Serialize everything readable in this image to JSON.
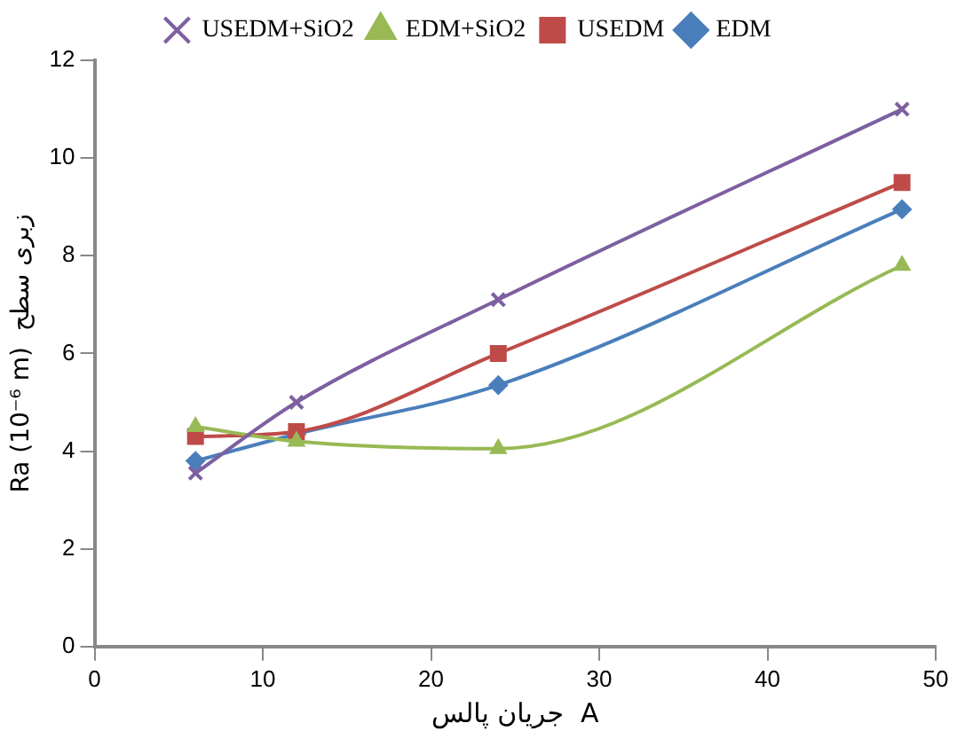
{
  "chart_data": {
    "type": "line",
    "xlabel": "جریان پالس  A",
    "ylabel": "Ra (10⁻⁶ m)  زبری سطح",
    "x": [
      6,
      12,
      24,
      48
    ],
    "series": [
      {
        "name": "EDM",
        "color": "#4a7ebb",
        "marker": "diamond",
        "values": [
          3.8,
          4.35,
          5.35,
          8.95
        ]
      },
      {
        "name": "USEDM",
        "color": "#be4b48",
        "marker": "square",
        "values": [
          4.3,
          4.4,
          6.0,
          9.5
        ]
      },
      {
        "name": "EDM+SiO2",
        "color": "#98b954",
        "marker": "triangle",
        "values": [
          4.5,
          4.2,
          4.05,
          7.8
        ]
      },
      {
        "name": "USEDM+SiO2",
        "color": "#7d60a0",
        "marker": "cross",
        "values": [
          3.55,
          5.0,
          7.1,
          11.0
        ]
      }
    ],
    "xlim": [
      0,
      50
    ],
    "xticks": [
      0,
      10,
      20,
      30,
      40,
      50
    ],
    "ylim": [
      0,
      12
    ],
    "yticks": [
      0,
      2,
      4,
      6,
      8,
      10,
      12
    ],
    "grid": false,
    "legend": "top",
    "line_style": "solid"
  }
}
